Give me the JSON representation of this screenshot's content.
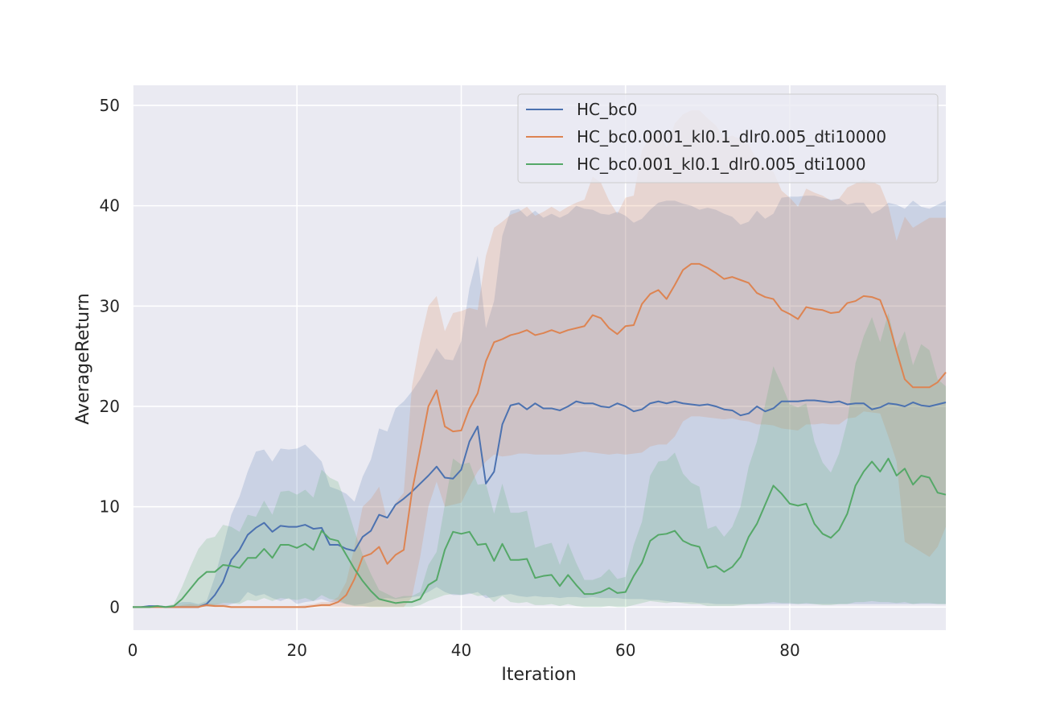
{
  "chart_data": {
    "type": "line",
    "xlabel": "Iteration",
    "ylabel": "AverageReturn",
    "xlim": [
      0,
      99
    ],
    "ylim": [
      -2.3,
      52
    ],
    "xticks": [
      0,
      20,
      40,
      60,
      80
    ],
    "yticks": [
      0,
      10,
      20,
      30,
      40,
      50
    ],
    "grid": true,
    "legend_position": "top-right",
    "colors": {
      "background": "#eaeaf2",
      "grid": "#ffffff",
      "text": "#262626"
    },
    "x": [
      0,
      1,
      2,
      3,
      4,
      5,
      6,
      7,
      8,
      9,
      10,
      11,
      12,
      13,
      14,
      15,
      16,
      17,
      18,
      19,
      20,
      21,
      22,
      23,
      24,
      25,
      26,
      27,
      28,
      29,
      30,
      31,
      32,
      33,
      34,
      35,
      36,
      37,
      38,
      39,
      40,
      41,
      42,
      43,
      44,
      45,
      46,
      47,
      48,
      49,
      50,
      51,
      52,
      53,
      54,
      55,
      56,
      57,
      58,
      59,
      60,
      61,
      62,
      63,
      64,
      65,
      66,
      67,
      68,
      69,
      70,
      71,
      72,
      73,
      74,
      75,
      76,
      77,
      78,
      79,
      80,
      81,
      82,
      83,
      84,
      85,
      86,
      87,
      88,
      89,
      90,
      91,
      92,
      93,
      94,
      95,
      96,
      97,
      98,
      99
    ],
    "series": [
      {
        "name": "HC_bc0",
        "color": "#4c72b0",
        "values": [
          0,
          0,
          0.1,
          0.1,
          0,
          0,
          0,
          0,
          0,
          0.3,
          1.2,
          2.5,
          4.7,
          5.7,
          7.2,
          7.9,
          8.4,
          7.5,
          8.1,
          8.0,
          8.0,
          8.2,
          7.8,
          7.9,
          6.2,
          6.2,
          5.8,
          5.6,
          7.0,
          7.6,
          9.2,
          8.9,
          10.2,
          10.8,
          11.5,
          12.3,
          13.1,
          14.0,
          12.9,
          12.8,
          13.7,
          16.5,
          18.0,
          12.3,
          13.5,
          18.2,
          20.1,
          20.3,
          19.7,
          20.3,
          19.8,
          19.8,
          19.6,
          20.0,
          20.5,
          20.3,
          20.3,
          20.0,
          19.9,
          20.3,
          20.0,
          19.5,
          19.7,
          20.3,
          20.5,
          20.3,
          20.5,
          20.3,
          20.2,
          20.1,
          20.2,
          20.0,
          19.7,
          19.6,
          19.1,
          19.3,
          20.0,
          19.5,
          19.8,
          20.5,
          20.5,
          20.5,
          20.6,
          20.6,
          20.5,
          20.4,
          20.5,
          20.2,
          20.3,
          20.3,
          19.7,
          19.9,
          20.3,
          20.2,
          20.0,
          20.4,
          20.1,
          20.0,
          20.2,
          20.4
        ],
        "lower": [
          0,
          0,
          0,
          0,
          0,
          0,
          0,
          0,
          0,
          0,
          0,
          0,
          0.3,
          0.5,
          1.5,
          1.1,
          1.3,
          0.9,
          0.6,
          0.9,
          0.3,
          0.5,
          0.6,
          0.8,
          0.5,
          0.5,
          0.3,
          0.2,
          0.3,
          0.5,
          0.8,
          0.9,
          0.8,
          0.9,
          1.0,
          1.1,
          1.5,
          2.0,
          1.5,
          1.2,
          1.2,
          1.3,
          1.5,
          0.9,
          1.0,
          1.2,
          1.3,
          1.1,
          1.0,
          1.1,
          1.0,
          1.0,
          0.9,
          1.0,
          1.0,
          0.9,
          1.0,
          0.9,
          0.9,
          0.9,
          0.8,
          0.8,
          0.8,
          0.7,
          0.7,
          0.6,
          0.5,
          0.5,
          0.5,
          0.4,
          0.4,
          0.3,
          0.3,
          0.3,
          0.3,
          0.3,
          0.3,
          0.3,
          0.3,
          0.3,
          0.3,
          0.3,
          0.3,
          0.3,
          0.3,
          0.3,
          0.3,
          0.3,
          0.3,
          0.3,
          0.3,
          0.3,
          0.3,
          0.3,
          0.3,
          0.3,
          0.3,
          0.3,
          0.3,
          0.3
        ],
        "upper": [
          0,
          0,
          0.1,
          0.2,
          0.1,
          0.2,
          0.5,
          0.5,
          0.3,
          0.6,
          3.0,
          6.0,
          9.2,
          11.0,
          13.5,
          15.5,
          15.7,
          14.5,
          15.8,
          15.7,
          15.8,
          16.2,
          15.4,
          14.5,
          12.0,
          11.7,
          11.3,
          10.5,
          13.0,
          14.7,
          17.8,
          17.5,
          19.8,
          20.5,
          21.5,
          22.7,
          24.2,
          25.8,
          24.7,
          24.6,
          26.5,
          31.8,
          35.0,
          27.8,
          30.5,
          37.0,
          39.5,
          39.7,
          38.9,
          39.5,
          38.8,
          39.2,
          38.8,
          39.2,
          40.0,
          39.7,
          39.6,
          39.2,
          39.1,
          39.4,
          39.0,
          38.3,
          38.7,
          39.6,
          40.3,
          40.5,
          40.5,
          40.2,
          40.0,
          39.6,
          39.8,
          39.6,
          39.2,
          38.9,
          38.1,
          38.4,
          39.5,
          38.7,
          39.2,
          40.8,
          40.9,
          40.9,
          41.0,
          41.0,
          40.8,
          40.6,
          40.7,
          40.1,
          40.3,
          40.3,
          39.2,
          39.6,
          40.3,
          40.1,
          39.7,
          40.5,
          39.9,
          39.7,
          40.1,
          40.5
        ]
      },
      {
        "name": "HC_bc0.0001_kl0.1_dlr0.005_dti10000",
        "color": "#dd8452",
        "values": [
          0,
          0,
          0,
          0,
          0,
          0,
          0,
          0,
          0,
          0.2,
          0.1,
          0.1,
          0,
          0,
          0,
          0,
          0,
          0,
          0,
          0,
          0,
          0,
          0.1,
          0.2,
          0.2,
          0.5,
          1.2,
          2.8,
          5.0,
          5.3,
          6.0,
          4.3,
          5.2,
          5.7,
          11.5,
          15.7,
          20.0,
          21.6,
          18.0,
          17.5,
          17.6,
          19.8,
          21.3,
          24.5,
          26.4,
          26.7,
          27.1,
          27.3,
          27.6,
          27.1,
          27.3,
          27.6,
          27.3,
          27.6,
          27.8,
          28.0,
          29.1,
          28.8,
          27.8,
          27.2,
          28.0,
          28.1,
          30.2,
          31.2,
          31.6,
          30.7,
          32.1,
          33.6,
          34.2,
          34.2,
          33.8,
          33.3,
          32.7,
          32.9,
          32.6,
          32.3,
          31.3,
          30.9,
          30.7,
          29.6,
          29.2,
          28.7,
          29.9,
          29.7,
          29.6,
          29.3,
          29.4,
          30.3,
          30.5,
          31.0,
          30.9,
          30.6,
          28.5,
          25.5,
          22.7,
          21.9,
          21.9,
          21.9,
          22.4,
          23.4
        ],
        "lower": [
          0,
          0,
          0,
          0,
          0,
          0,
          0,
          0,
          0,
          0,
          0,
          0,
          0,
          0,
          0,
          0,
          0,
          0,
          0,
          0,
          0,
          0,
          0,
          0,
          0,
          0,
          0,
          0,
          0,
          0,
          0,
          0,
          0,
          0,
          1.0,
          5.0,
          10.0,
          12.5,
          10.0,
          10.2,
          10.4,
          12.0,
          13.5,
          14.5,
          15.2,
          15.0,
          15.1,
          15.3,
          15.3,
          15.2,
          15.2,
          15.2,
          15.2,
          15.3,
          15.4,
          15.5,
          15.4,
          15.3,
          15.2,
          15.3,
          15.2,
          15.3,
          15.4,
          16.0,
          16.2,
          16.2,
          17.0,
          18.5,
          19.0,
          19.0,
          18.9,
          18.8,
          18.7,
          18.8,
          18.6,
          18.5,
          18.2,
          18.2,
          18.1,
          17.8,
          17.7,
          17.6,
          18.2,
          18.2,
          18.3,
          18.2,
          18.2,
          18.8,
          18.9,
          19.5,
          19.4,
          19.3,
          17.0,
          14.5,
          6.5,
          6.0,
          5.5,
          5.0,
          6.0,
          8.0
        ],
        "upper": [
          0,
          0,
          0,
          0,
          0,
          0,
          0.2,
          0.3,
          0.2,
          0.4,
          0.3,
          0.3,
          0.1,
          0.1,
          0.1,
          0.1,
          0.1,
          0.1,
          0.1,
          0.1,
          0.1,
          0.2,
          0.3,
          0.5,
          0.5,
          1.0,
          2.5,
          6.0,
          10.0,
          10.8,
          12.0,
          8.6,
          10.4,
          11.4,
          22.0,
          26.5,
          30.0,
          31.0,
          27.5,
          29.3,
          29.5,
          29.8,
          29.6,
          35.0,
          37.8,
          38.4,
          39.1,
          39.4,
          39.9,
          39.0,
          39.4,
          39.9,
          39.4,
          39.9,
          40.3,
          40.6,
          42.9,
          42.3,
          40.5,
          39.2,
          40.8,
          41.0,
          45.5,
          46.9,
          47.5,
          45.8,
          48.2,
          49.1,
          49.5,
          49.5,
          48.7,
          48.0,
          46.7,
          47.0,
          46.6,
          46.1,
          44.5,
          43.7,
          43.4,
          41.5,
          40.8,
          39.9,
          41.7,
          41.3,
          41.0,
          40.5,
          40.7,
          41.8,
          42.2,
          42.6,
          42.4,
          42.0,
          40.0,
          36.5,
          38.9,
          37.8,
          38.3,
          38.8,
          38.8,
          38.8
        ]
      },
      {
        "name": "HC_bc0.001_kl0.1_dlr0.005_dti1000",
        "color": "#55a868",
        "values": [
          0,
          0,
          0,
          0.1,
          0,
          0.1,
          0.8,
          1.8,
          2.8,
          3.5,
          3.5,
          4.2,
          4.1,
          3.9,
          4.9,
          4.9,
          5.8,
          4.9,
          6.2,
          6.2,
          5.9,
          6.3,
          5.7,
          7.6,
          6.8,
          6.6,
          5.2,
          3.8,
          2.6,
          1.6,
          0.8,
          0.6,
          0.4,
          0.5,
          0.5,
          0.8,
          2.2,
          2.7,
          5.7,
          7.5,
          7.3,
          7.5,
          6.2,
          6.3,
          4.6,
          6.3,
          4.7,
          4.7,
          4.8,
          2.9,
          3.1,
          3.2,
          2.1,
          3.2,
          2.2,
          1.3,
          1.3,
          1.5,
          1.9,
          1.4,
          1.5,
          3.1,
          4.4,
          6.6,
          7.2,
          7.3,
          7.6,
          6.6,
          6.2,
          6.0,
          3.9,
          4.1,
          3.5,
          4.0,
          5.0,
          7.0,
          8.3,
          10.2,
          12.1,
          11.3,
          10.3,
          10.1,
          10.3,
          8.3,
          7.3,
          6.9,
          7.7,
          9.3,
          12.1,
          13.5,
          14.5,
          13.5,
          14.8,
          13.1,
          13.8,
          12.2,
          13.1,
          12.9,
          11.4,
          11.2
        ],
        "lower": [
          0,
          0,
          0,
          0,
          0,
          0,
          0,
          0,
          0,
          0.1,
          0.2,
          0.4,
          0.4,
          0.3,
          0.7,
          0.6,
          0.9,
          0.6,
          0.9,
          0.8,
          0.7,
          0.9,
          0.6,
          1.2,
          0.8,
          0.7,
          0.3,
          0.1,
          0.1,
          0,
          0,
          0,
          0,
          0,
          0,
          0.2,
          0.6,
          0.9,
          1.2,
          1.3,
          1.2,
          1.4,
          1.1,
          1.2,
          0.5,
          1.1,
          0.5,
          0.4,
          0.5,
          0.2,
          0.2,
          0.3,
          0.1,
          0.3,
          0.1,
          0,
          0,
          0,
          0.1,
          0,
          0,
          0.2,
          0.4,
          0.6,
          0.5,
          0.4,
          0.5,
          0.4,
          0.3,
          0.3,
          0.1,
          0.1,
          0.1,
          0.1,
          0.2,
          0.3,
          0.3,
          0.4,
          0.5,
          0.4,
          0.4,
          0.3,
          0.4,
          0.3,
          0.2,
          0.2,
          0.3,
          0.3,
          0.5,
          0.5,
          0.6,
          0.5,
          0.5,
          0.4,
          0.5,
          0.3,
          0.4,
          0.4,
          0.3,
          0.3
        ],
        "upper": [
          0,
          0,
          0,
          0.2,
          0.1,
          0.3,
          2.0,
          4.0,
          5.8,
          6.8,
          7.0,
          8.2,
          8.0,
          7.5,
          9.2,
          9.0,
          10.6,
          9.2,
          11.5,
          11.6,
          11.2,
          11.7,
          10.9,
          13.7,
          12.9,
          12.5,
          10.2,
          7.6,
          5.2,
          3.3,
          1.7,
          1.3,
          0.9,
          1.1,
          1.1,
          1.5,
          4.2,
          5.5,
          10.2,
          14.8,
          14.2,
          14.4,
          12.2,
          12.3,
          9.3,
          12.3,
          9.4,
          9.4,
          9.6,
          5.9,
          6.2,
          6.4,
          4.2,
          6.4,
          4.4,
          2.7,
          2.7,
          3.0,
          3.8,
          2.8,
          3.0,
          6.2,
          8.5,
          13.1,
          14.5,
          14.6,
          15.4,
          13.3,
          12.4,
          12.0,
          7.8,
          8.1,
          7.0,
          8.0,
          10.0,
          14.0,
          16.5,
          20.2,
          24.0,
          22.2,
          20.2,
          19.9,
          20.3,
          16.5,
          14.4,
          13.4,
          15.3,
          18.5,
          24.3,
          27.0,
          28.9,
          26.4,
          29.3,
          25.8,
          27.5,
          24.1,
          26.2,
          25.6,
          22.7,
          22.0
        ]
      }
    ]
  }
}
